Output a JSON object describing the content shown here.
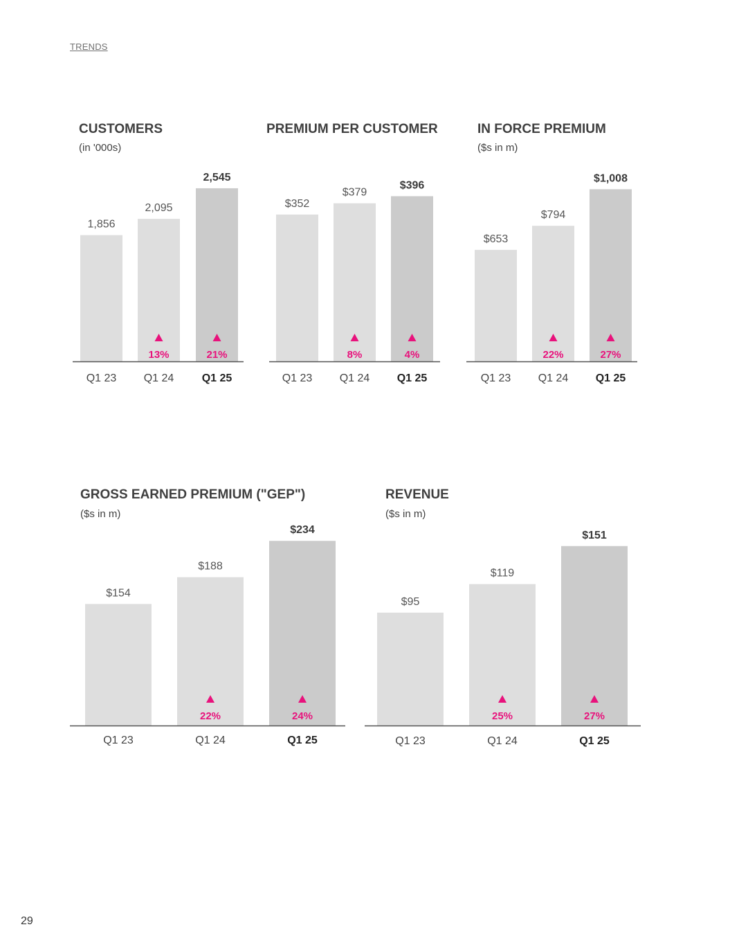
{
  "header": {
    "section": "TRENDS"
  },
  "footer": {
    "page_number": "29"
  },
  "colors": {
    "bar": "#dedede",
    "bar_latest": "#cbcbcb",
    "accent": "#e8127c",
    "axis": "#555555"
  },
  "chart_data": [
    {
      "type": "bar",
      "id": "customers",
      "title": "CUSTOMERS",
      "subtitle": "(in '000s)",
      "categories": [
        "Q1 23",
        "Q1 24",
        "Q1 25"
      ],
      "values": [
        1856,
        2095,
        2545
      ],
      "value_labels": [
        "1,856",
        "2,095",
        "2,545"
      ],
      "growth": [
        null,
        "13%",
        "21%"
      ],
      "ylim": [
        0,
        2870
      ]
    },
    {
      "type": "bar",
      "id": "premium-per-customer",
      "title": "PREMIUM PER CUSTOMER",
      "subtitle": "",
      "categories": [
        "Q1 23",
        "Q1 24",
        "Q1 25"
      ],
      "values": [
        352,
        379,
        396
      ],
      "value_labels": [
        "$352",
        "$379",
        "$396"
      ],
      "growth": [
        null,
        "8%",
        "4%"
      ],
      "ylim": [
        0,
        468
      ]
    },
    {
      "type": "bar",
      "id": "in-force-premium",
      "title": "IN FORCE PREMIUM",
      "subtitle": "($s in m)",
      "categories": [
        "Q1 23",
        "Q1 24",
        "Q1 25"
      ],
      "values": [
        653,
        794,
        1008
      ],
      "value_labels": [
        "$653",
        "$794",
        "$1,008"
      ],
      "growth": [
        null,
        "22%",
        "27%"
      ],
      "ylim": [
        0,
        1143
      ]
    },
    {
      "type": "bar",
      "id": "gross-earned-premium",
      "title": "GROSS EARNED PREMIUM (\"GEP\")",
      "subtitle": "($s in m)",
      "categories": [
        "Q1 23",
        "Q1 24",
        "Q1 25"
      ],
      "values": [
        154,
        188,
        234
      ],
      "value_labels": [
        "$154",
        "$188",
        "$234"
      ],
      "growth": [
        null,
        "22%",
        "24%"
      ],
      "ylim": [
        0,
        250
      ]
    },
    {
      "type": "bar",
      "id": "revenue",
      "title": "REVENUE",
      "subtitle": "($s in m)",
      "categories": [
        "Q1 23",
        "Q1 24",
        "Q1 25"
      ],
      "values": [
        95,
        119,
        151
      ],
      "value_labels": [
        "$95",
        "$119",
        "$151"
      ],
      "growth": [
        null,
        "25%",
        "27%"
      ],
      "ylim": [
        0,
        166
      ]
    }
  ]
}
